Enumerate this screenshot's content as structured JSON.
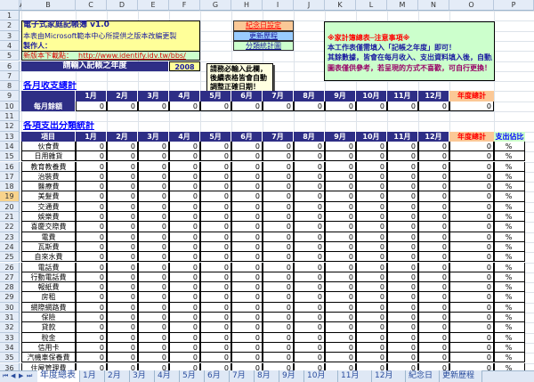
{
  "columns": [
    "A",
    "B",
    "C",
    "D",
    "E",
    "F",
    "G",
    "H",
    "I",
    "J",
    "K",
    "L",
    "M",
    "N",
    "O",
    "P"
  ],
  "info": {
    "title": "電子式家庭記帳簿 v1.0",
    "source": "本表由Microsoft範本中心所提供之版本改編更製",
    "author_label": "製作人：",
    "download_label": "新版本下載點：",
    "download_url": "http://www.identify.idv.tw/bbs/"
  },
  "year": {
    "label": "請輸入記帳之年度",
    "value": "2008"
  },
  "comment": "請務必輸入此欄，後續表格皆會自動調整正確日期！",
  "buttons": {
    "anniversary": "紀念日設定",
    "history": "更新歷程",
    "chart": "分類統計圖"
  },
  "notice": {
    "title": "※家計簿總表─注意事項※",
    "line1": "本工作表僅需填入「記帳之年度」即可！",
    "line2": "其餘數據，皆會在每月收入、支出資料填入後，自動產生！",
    "line3": "圖表僅供參考，若呈現的方式不喜歡，可自行更換！"
  },
  "monthly": {
    "title": "各月收支總計",
    "months": [
      "1月",
      "2月",
      "3月",
      "4月",
      "5月",
      "6月",
      "7月",
      "8月",
      "9月",
      "10月",
      "11月",
      "12月"
    ],
    "total_label": "年度總計",
    "row_label": "每月餘額",
    "values": [
      0,
      0,
      0,
      0,
      0,
      0,
      0,
      0,
      0,
      0,
      0,
      0
    ],
    "total": 0
  },
  "expense": {
    "title": "各項支出分類統計",
    "item_label": "項目",
    "total_label": "年度總計",
    "ratio_label": "支出佔比",
    "ratio_value": "%",
    "categories": [
      "伙食費",
      "日用雜貨",
      "教育教養費",
      "治裝費",
      "醫療費",
      "美髮費",
      "交通費",
      "娛樂費",
      "喜慶交際費",
      "電費",
      "瓦斯費",
      "自來水費",
      "電話費",
      "行動電話費",
      "報紙費",
      "房租",
      "網際網路費",
      "保險",
      "貸款",
      "稅金",
      "信用卡",
      "汽機車保養費",
      "住屋管理費"
    ],
    "value": 0
  },
  "tabs": [
    "年度總表",
    "1月",
    "2月",
    "3月",
    "4月",
    "5月",
    "6月",
    "7月",
    "8月",
    "9月",
    "10月",
    "11月",
    "12月",
    "紀念日",
    "更新歷程"
  ],
  "active_tab": "年度總表",
  "colors": {
    "navy": "#2e2e86",
    "yellow": "#ffff99",
    "orange": "#fbc896",
    "green": "#ccffcc",
    "blue": "#99ccff",
    "red": "#ff0000"
  }
}
